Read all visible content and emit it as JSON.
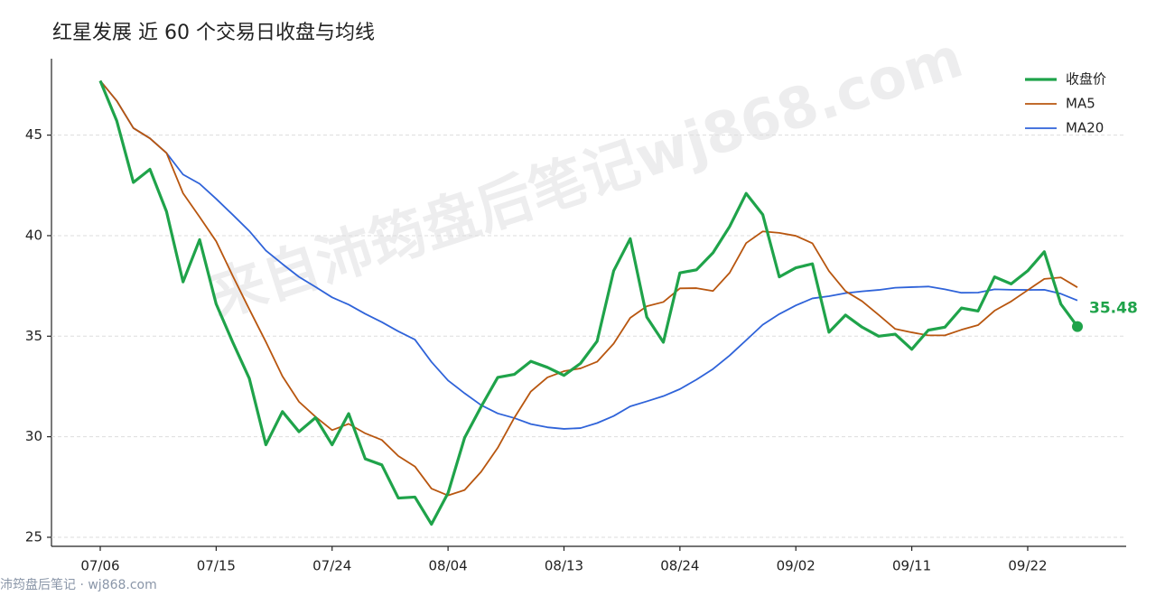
{
  "chart_data": {
    "type": "line",
    "title": "红星发展 近 60 个交易日收盘与均线",
    "watermark": "来自沛筠盘后笔记wj868.com",
    "footer": "沛筠盘后笔记 · wj868.com",
    "categories": [
      "07/06",
      null,
      null,
      null,
      null,
      null,
      null,
      "07/15",
      null,
      null,
      null,
      null,
      null,
      null,
      "07/24",
      null,
      null,
      null,
      null,
      null,
      null,
      "08/04",
      null,
      null,
      null,
      null,
      null,
      null,
      "08/13",
      null,
      null,
      null,
      null,
      null,
      null,
      "08/24",
      null,
      null,
      null,
      null,
      null,
      null,
      "09/02",
      null,
      null,
      null,
      null,
      null,
      null,
      "09/11",
      null,
      null,
      null,
      null,
      null,
      null,
      "09/22",
      null,
      null,
      null
    ],
    "ylim": [
      24.55,
      48.8
    ],
    "yticks": [
      25,
      30,
      35,
      40,
      45
    ],
    "grid": true,
    "legend": "upper right",
    "series": [
      {
        "name": "收盘价",
        "color": "#1fa34a",
        "width": 3.2,
        "end_label": true,
        "values": [
          47.7,
          45.7,
          42.65,
          43.3,
          41.2,
          37.7,
          39.8,
          36.6,
          34.7,
          32.9,
          29.6,
          31.25,
          30.25,
          30.95,
          29.6,
          31.15,
          28.9,
          28.6,
          26.95,
          27.0,
          25.65,
          27.2,
          29.95,
          31.5,
          32.95,
          33.1,
          33.75,
          33.45,
          33.05,
          33.65,
          34.75,
          38.25,
          39.85,
          35.95,
          34.7,
          38.15,
          38.3,
          39.15,
          40.45,
          42.1,
          41.05,
          37.95,
          38.4,
          38.6,
          35.2,
          36.05,
          35.45,
          35.0,
          35.1,
          34.35,
          35.3,
          35.45,
          36.4,
          36.25,
          37.95,
          37.6,
          38.25,
          39.2,
          36.6,
          35.48
        ]
      },
      {
        "name": "MA5",
        "color": "#b8560f",
        "width": 1.8,
        "values": [
          47.7,
          46.7,
          45.35,
          44.84,
          44.11,
          42.11,
          40.93,
          39.72,
          38.0,
          36.34,
          34.72,
          33.01,
          31.74,
          30.99,
          30.33,
          30.64,
          30.17,
          29.84,
          29.04,
          28.52,
          27.42,
          27.08,
          27.35,
          28.26,
          29.45,
          30.94,
          32.25,
          32.95,
          33.26,
          33.4,
          33.73,
          34.63,
          35.91,
          36.49,
          36.7,
          37.38,
          37.39,
          37.25,
          38.15,
          39.63,
          40.21,
          40.14,
          39.99,
          39.62,
          38.24,
          37.24,
          36.74,
          36.06,
          35.36,
          35.19,
          35.04,
          35.04,
          35.32,
          35.55,
          36.27,
          36.73,
          37.29,
          37.85,
          37.92,
          37.43
        ]
      },
      {
        "name": "MA20",
        "color": "#2f63d9",
        "width": 1.8,
        "values": [
          47.7,
          46.7,
          45.35,
          44.84,
          44.11,
          43.04,
          42.58,
          41.83,
          41.04,
          40.23,
          39.26,
          38.59,
          37.95,
          37.45,
          36.93,
          36.57,
          36.11,
          35.7,
          35.24,
          34.83,
          33.72,
          32.8,
          32.16,
          31.57,
          31.16,
          30.93,
          30.63,
          30.47,
          30.39,
          30.43,
          30.68,
          31.03,
          31.51,
          31.76,
          32.02,
          32.37,
          32.84,
          33.37,
          34.04,
          34.8,
          35.57,
          36.1,
          36.53,
          36.88,
          36.99,
          37.14,
          37.23,
          37.3,
          37.41,
          37.44,
          37.47,
          37.33,
          37.16,
          37.17,
          37.33,
          37.31,
          37.3,
          37.31,
          37.11,
          36.78
        ]
      }
    ]
  }
}
